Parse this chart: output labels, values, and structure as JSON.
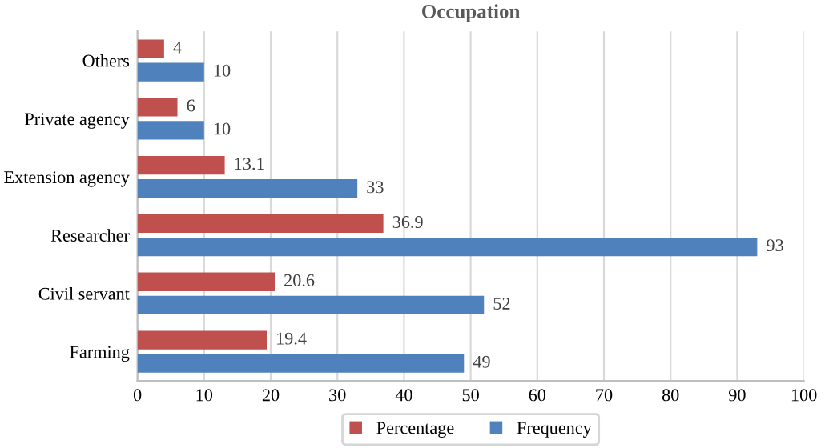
{
  "chart_data": {
    "type": "bar",
    "title": "Occupation",
    "orientation": "horizontal",
    "categories": [
      "Others",
      "Private agency",
      "Extension agency",
      "Researcher",
      "Civil servant",
      "Farming"
    ],
    "series": [
      {
        "name": "Percentage",
        "color": "#c0504d",
        "values": [
          4,
          6,
          13.1,
          36.9,
          20.6,
          19.4
        ]
      },
      {
        "name": "Frequency",
        "color": "#4f81bd",
        "values": [
          10,
          10,
          33,
          93,
          52,
          49
        ]
      }
    ],
    "xlim": [
      0,
      100
    ],
    "xticks": [
      0,
      10,
      20,
      30,
      40,
      50,
      60,
      70,
      80,
      90,
      100
    ],
    "grid": "x",
    "legend": "bottom",
    "data_labels": true
  }
}
